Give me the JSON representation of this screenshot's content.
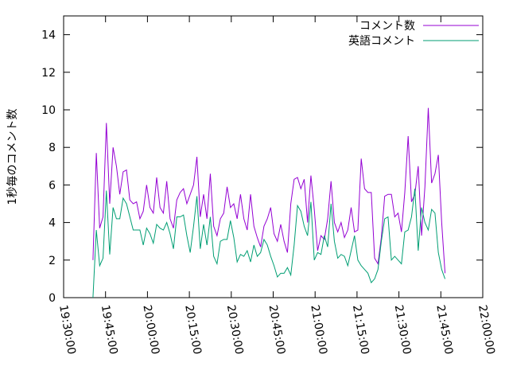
{
  "chart_data": {
    "type": "line",
    "y_label": "1秒毎のコメント数",
    "x": [
      "19:40:30",
      "19:41:42",
      "19:42:54",
      "19:44:06",
      "19:45:18",
      "19:46:30",
      "19:47:42",
      "19:48:54",
      "19:50:06",
      "19:51:18",
      "19:52:30",
      "19:53:42",
      "19:54:54",
      "19:56:06",
      "19:57:18",
      "19:58:30",
      "19:59:42",
      "20:00:54",
      "20:02:06",
      "20:03:18",
      "20:04:30",
      "20:05:42",
      "20:06:54",
      "20:08:06",
      "20:09:18",
      "20:10:30",
      "20:11:42",
      "20:12:54",
      "20:14:06",
      "20:15:18",
      "20:16:30",
      "20:17:42",
      "20:18:54",
      "20:20:06",
      "20:21:18",
      "20:22:30",
      "20:23:42",
      "20:24:54",
      "20:26:06",
      "20:27:18",
      "20:28:30",
      "20:29:42",
      "20:30:54",
      "20:32:06",
      "20:33:18",
      "20:34:30",
      "20:35:42",
      "20:36:54",
      "20:38:06",
      "20:39:18",
      "20:40:30",
      "20:41:42",
      "20:42:54",
      "20:44:06",
      "20:45:18",
      "20:46:30",
      "20:47:42",
      "20:48:54",
      "20:50:06",
      "20:51:18",
      "20:52:30",
      "20:53:42",
      "20:54:54",
      "20:56:06",
      "20:57:18",
      "20:58:30",
      "20:59:42",
      "21:00:54",
      "21:02:06",
      "21:03:18",
      "21:04:30",
      "21:05:42",
      "21:06:54",
      "21:08:06",
      "21:09:18",
      "21:10:30",
      "21:11:42",
      "21:12:54",
      "21:14:06",
      "21:15:18",
      "21:16:30",
      "21:17:42",
      "21:18:54",
      "21:20:06",
      "21:21:18",
      "21:22:30",
      "21:23:42",
      "21:24:54",
      "21:26:06",
      "21:27:18",
      "21:28:30",
      "21:29:42",
      "21:30:54",
      "21:32:06",
      "21:33:18",
      "21:34:30",
      "21:35:42",
      "21:36:54",
      "21:38:06",
      "21:39:18",
      "21:40:30",
      "21:41:42",
      "21:42:54",
      "21:44:06",
      "21:45:18",
      "21:46:30"
    ],
    "series": [
      {
        "name": "コメント数",
        "color": "#9400d3",
        "values": [
          2.0,
          7.7,
          3.7,
          4.3,
          9.3,
          5.0,
          8.0,
          7.0,
          5.5,
          6.7,
          6.8,
          5.2,
          5.0,
          5.1,
          4.2,
          4.6,
          6.0,
          4.8,
          4.5,
          6.4,
          4.8,
          4.5,
          6.2,
          4.2,
          3.7,
          5.2,
          5.6,
          5.8,
          5.0,
          5.5,
          6.0,
          7.5,
          4.3,
          5.5,
          4.2,
          6.6,
          3.8,
          3.3,
          4.2,
          4.5,
          5.9,
          4.8,
          5.0,
          4.2,
          5.5,
          4.2,
          3.6,
          5.5,
          3.8,
          3.2,
          2.7,
          3.8,
          4.2,
          4.8,
          3.4,
          3.0,
          3.9,
          3.0,
          2.4,
          5.0,
          6.3,
          6.4,
          5.8,
          6.3,
          4.0,
          6.5,
          4.7,
          2.5,
          3.3,
          3.1,
          4.2,
          6.2,
          4.0,
          3.5,
          4.0,
          3.2,
          3.6,
          4.8,
          3.5,
          3.6,
          7.4,
          5.8,
          5.6,
          5.6,
          2.1,
          1.8,
          3.2,
          5.4,
          5.5,
          5.5,
          4.3,
          4.5,
          3.5,
          5.6,
          8.6,
          5.1,
          5.5,
          7.0,
          3.3,
          5.9,
          10.1,
          6.1,
          6.6,
          7.6,
          4.0,
          1.3
        ]
      },
      {
        "name": "英語コメント",
        "color": "#009e73",
        "values": [
          0.0,
          3.6,
          1.7,
          2.1,
          5.7,
          2.3,
          4.8,
          4.2,
          4.2,
          5.3,
          5.0,
          4.3,
          3.6,
          3.6,
          3.6,
          2.8,
          3.7,
          3.4,
          2.9,
          3.9,
          3.7,
          3.6,
          4.0,
          3.4,
          2.6,
          4.3,
          4.3,
          4.4,
          3.3,
          2.4,
          3.8,
          5.4,
          2.6,
          3.9,
          2.8,
          4.3,
          2.2,
          1.8,
          3.0,
          3.1,
          3.1,
          4.1,
          3.2,
          1.9,
          2.3,
          2.2,
          2.5,
          1.9,
          2.8,
          2.2,
          2.4,
          3.1,
          2.8,
          2.2,
          1.7,
          1.1,
          1.3,
          1.3,
          1.6,
          1.2,
          2.8,
          4.9,
          4.6,
          3.8,
          3.3,
          5.1,
          2.0,
          2.4,
          2.3,
          3.3,
          2.7,
          5.0,
          3.0,
          2.1,
          2.3,
          2.2,
          1.7,
          2.5,
          3.3,
          2.0,
          1.7,
          1.5,
          1.3,
          0.8,
          1.0,
          1.5,
          3.0,
          4.2,
          4.3,
          2.0,
          2.2,
          2.0,
          1.8,
          3.5,
          3.6,
          4.3,
          5.8,
          2.5,
          4.8,
          4.0,
          3.6,
          4.7,
          4.5,
          2.4,
          1.5,
          1.0
        ]
      }
    ],
    "xlim": [
      "19:30:00",
      "22:00:00"
    ],
    "xticks": [
      "19:30:00",
      "19:45:00",
      "20:00:00",
      "20:15:00",
      "20:30:00",
      "20:45:00",
      "21:00:00",
      "21:15:00",
      "21:30:00",
      "21:45:00",
      "22:00:00"
    ],
    "ylim": [
      0,
      15
    ],
    "yticks": [
      0,
      2,
      4,
      6,
      8,
      10,
      12,
      14
    ],
    "legend": "top-right"
  }
}
